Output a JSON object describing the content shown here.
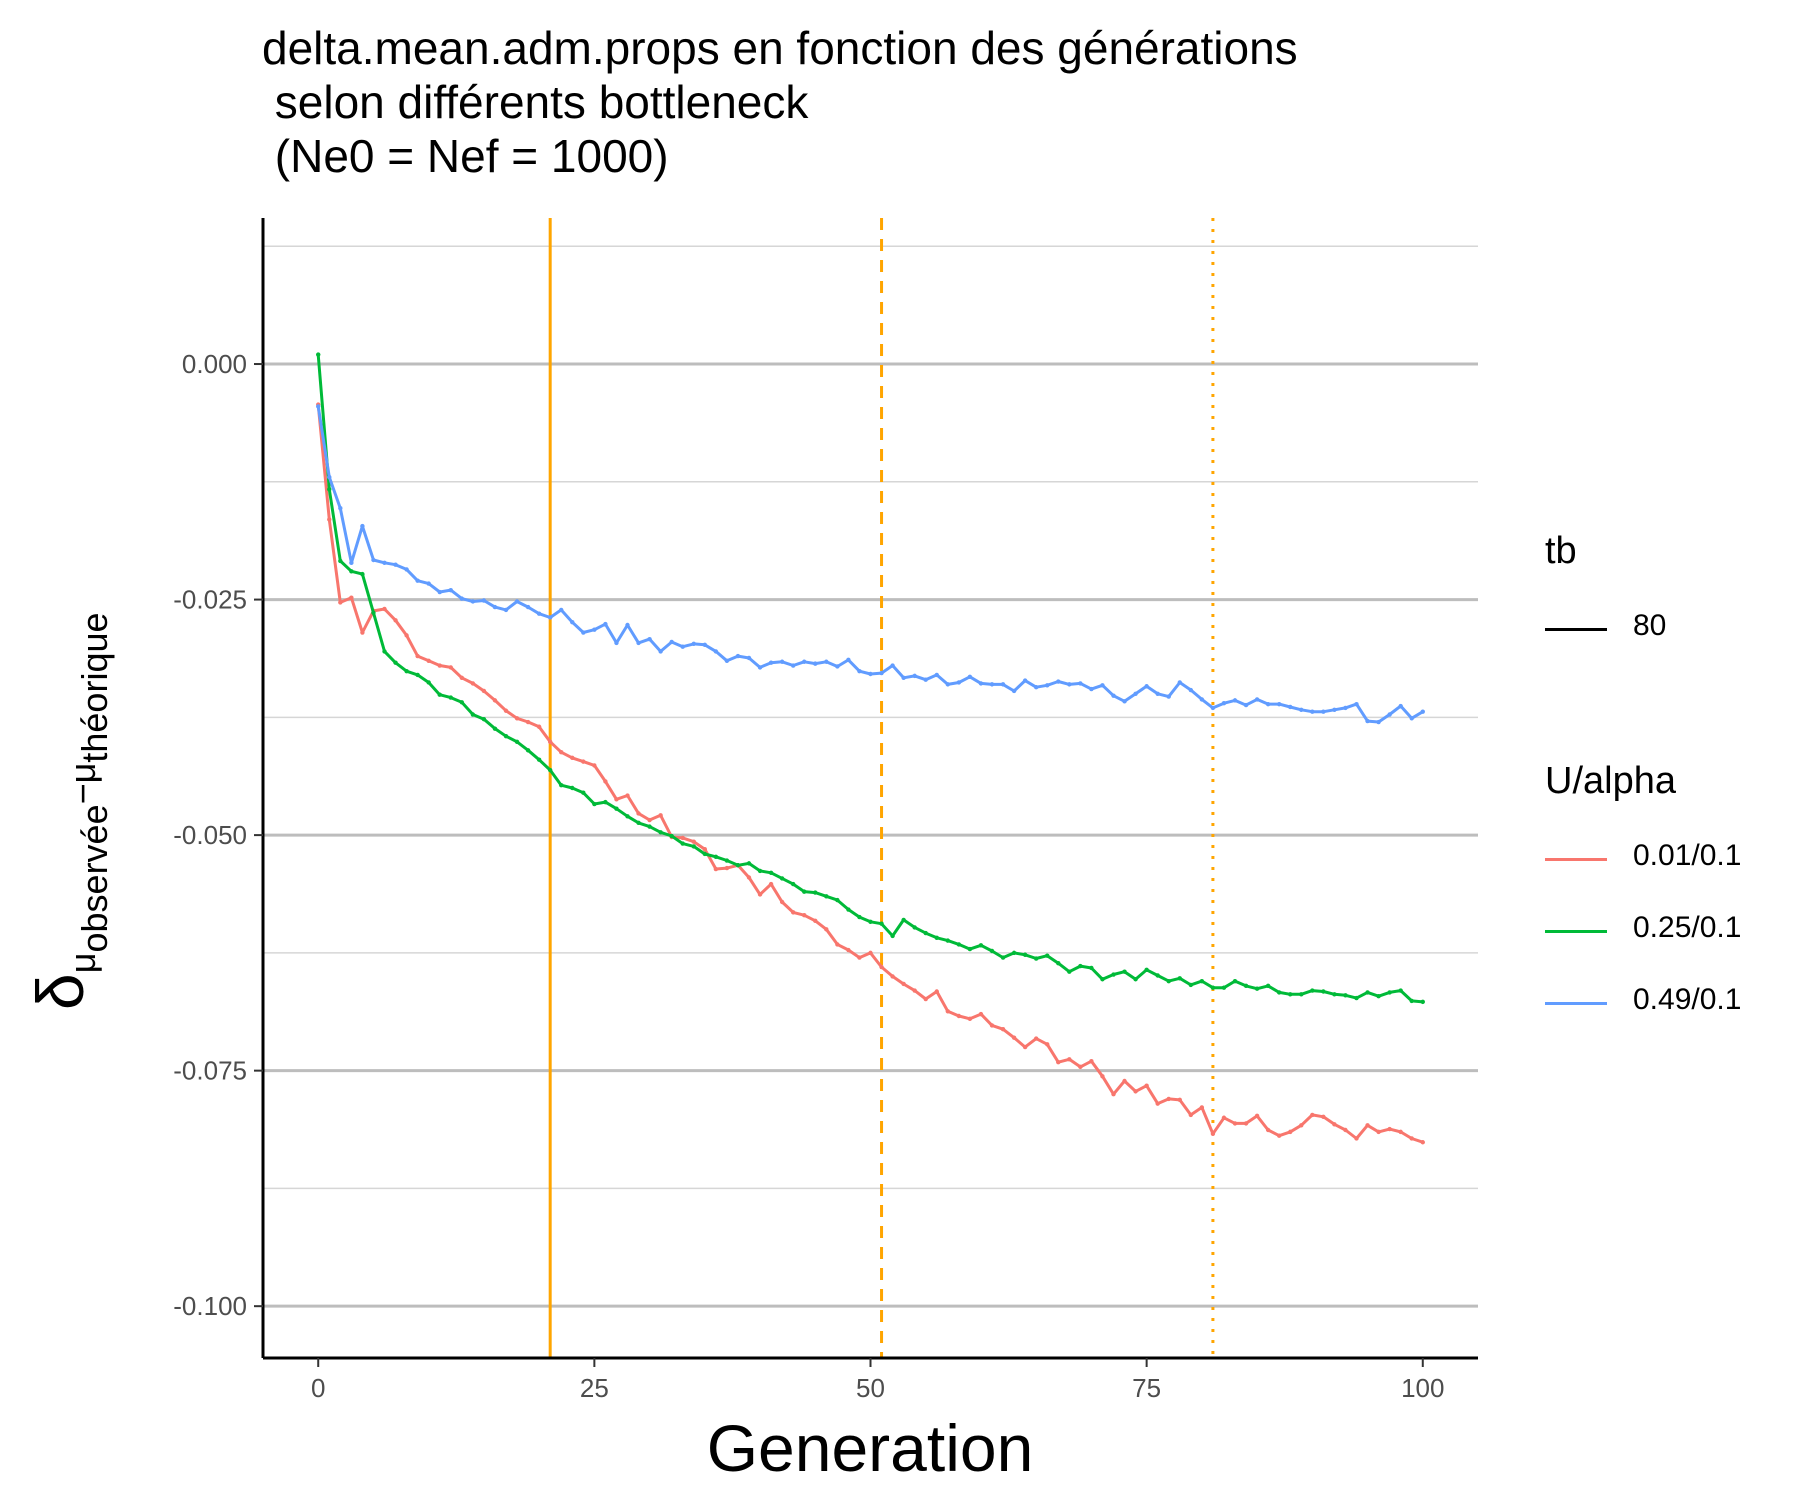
{
  "title_lines": [
    "delta.mean.adm.props en fonction des générations",
    " selon différents bottleneck",
    " (Ne0 = Nef = 1000)"
  ],
  "chart_data": {
    "type": "line",
    "xlabel": "Generation",
    "ylabel": {
      "symbol": "δ",
      "sub1": "μ",
      "sub1b": "observée",
      "sep": "−",
      "sub2": "μ",
      "sub2b": "théorique"
    },
    "xlim": [
      -5,
      105
    ],
    "ylim": [
      -0.1055,
      0.0155
    ],
    "x_ticks": [
      0,
      25,
      50,
      75,
      100
    ],
    "x_tick_labels": [
      "0",
      "25",
      "50",
      "75",
      "100"
    ],
    "y_ticks": [
      0.0,
      -0.025,
      -0.05,
      -0.075,
      -0.1
    ],
    "y_tick_labels": [
      "0.000",
      "-0.025",
      "-0.050",
      "-0.075",
      "-0.100"
    ],
    "y_minor_ticks": [
      0.0125,
      -0.0125,
      -0.0375,
      -0.0625,
      -0.0875
    ],
    "grid": true,
    "legend_position": "right",
    "vlines": [
      {
        "x": 21,
        "style": "solid",
        "color": "#FFA500"
      },
      {
        "x": 51,
        "style": "dashed",
        "color": "#FFA500"
      },
      {
        "x": 81,
        "style": "dotted",
        "color": "#FFA500"
      }
    ],
    "legend_tb": {
      "title": "tb",
      "entries": [
        "80"
      ]
    },
    "legend_u": {
      "title": "U/alpha",
      "entries": [
        "0.01/0.1",
        "0.25/0.1",
        "0.49/0.1"
      ]
    },
    "series": [
      {
        "name": "0.01/0.1",
        "color": "#F8766D",
        "x_start": 0,
        "x_step": 1,
        "y": [
          -0.0043,
          -0.0165,
          -0.0253,
          -0.0248,
          -0.0285,
          -0.0262,
          -0.026,
          -0.0272,
          -0.0288,
          -0.031,
          -0.0315,
          -0.032,
          -0.0322,
          -0.0333,
          -0.0339,
          -0.0347,
          -0.0357,
          -0.0368,
          -0.0376,
          -0.038,
          -0.0385,
          -0.0401,
          -0.0412,
          -0.0418,
          -0.0422,
          -0.0426,
          -0.0443,
          -0.0462,
          -0.0458,
          -0.0477,
          -0.0484,
          -0.0479,
          -0.0502,
          -0.0503,
          -0.0507,
          -0.0515,
          -0.0536,
          -0.0535,
          -0.0532,
          -0.0545,
          -0.0563,
          -0.0552,
          -0.0571,
          -0.0582,
          -0.0585,
          -0.0591,
          -0.06,
          -0.0616,
          -0.0622,
          -0.063,
          -0.0625,
          -0.064,
          -0.065,
          -0.0658,
          -0.0665,
          -0.0674,
          -0.0666,
          -0.0687,
          -0.0692,
          -0.0695,
          -0.069,
          -0.0702,
          -0.0706,
          -0.0715,
          -0.0725,
          -0.0716,
          -0.0722,
          -0.0741,
          -0.0738,
          -0.0746,
          -0.074,
          -0.0756,
          -0.0775,
          -0.0761,
          -0.0772,
          -0.0766,
          -0.0785,
          -0.078,
          -0.0781,
          -0.0797,
          -0.0789,
          -0.0817,
          -0.08,
          -0.0806,
          -0.0806,
          -0.0798,
          -0.0813,
          -0.0819,
          -0.0815,
          -0.0808,
          -0.0797,
          -0.0799,
          -0.0807,
          -0.0813,
          -0.0822,
          -0.0808,
          -0.0815,
          -0.0812,
          -0.0815,
          -0.0822,
          -0.0826
        ]
      },
      {
        "name": "0.25/0.1",
        "color": "#00BA38",
        "x_start": 0,
        "x_step": 1,
        "y": [
          0.001,
          -0.0133,
          -0.0209,
          -0.022,
          -0.0223,
          -0.0264,
          -0.0305,
          -0.0317,
          -0.0326,
          -0.033,
          -0.0338,
          -0.0351,
          -0.0354,
          -0.0359,
          -0.0372,
          -0.0377,
          -0.0387,
          -0.0395,
          -0.0401,
          -0.041,
          -0.042,
          -0.0431,
          -0.0447,
          -0.045,
          -0.0455,
          -0.0467,
          -0.0465,
          -0.0472,
          -0.048,
          -0.0487,
          -0.0491,
          -0.0497,
          -0.0501,
          -0.0509,
          -0.0512,
          -0.052,
          -0.0523,
          -0.0527,
          -0.0532,
          -0.053,
          -0.0538,
          -0.054,
          -0.0546,
          -0.0552,
          -0.056,
          -0.0561,
          -0.0565,
          -0.0569,
          -0.0579,
          -0.0587,
          -0.0592,
          -0.0594,
          -0.0607,
          -0.059,
          -0.0598,
          -0.0604,
          -0.0609,
          -0.0612,
          -0.0616,
          -0.0621,
          -0.0617,
          -0.0623,
          -0.063,
          -0.0625,
          -0.0627,
          -0.0631,
          -0.0628,
          -0.0636,
          -0.0645,
          -0.0639,
          -0.0641,
          -0.0653,
          -0.0648,
          -0.0645,
          -0.0653,
          -0.0643,
          -0.0649,
          -0.0655,
          -0.0652,
          -0.0659,
          -0.0655,
          -0.0662,
          -0.0662,
          -0.0655,
          -0.066,
          -0.0663,
          -0.066,
          -0.0667,
          -0.0669,
          -0.0669,
          -0.0665,
          -0.0666,
          -0.0669,
          -0.067,
          -0.0673,
          -0.0667,
          -0.0671,
          -0.0667,
          -0.0665,
          -0.0676,
          -0.0677
        ]
      },
      {
        "name": "0.49/0.1",
        "color": "#619CFF",
        "x_start": 0,
        "x_step": 1,
        "y": [
          -0.0045,
          -0.012,
          -0.0153,
          -0.0211,
          -0.0172,
          -0.0208,
          -0.0211,
          -0.0213,
          -0.0218,
          -0.023,
          -0.0233,
          -0.0242,
          -0.024,
          -0.0249,
          -0.0252,
          -0.0251,
          -0.0258,
          -0.0261,
          -0.0252,
          -0.0258,
          -0.0265,
          -0.0269,
          -0.0261,
          -0.0274,
          -0.0285,
          -0.0282,
          -0.0276,
          -0.0296,
          -0.0277,
          -0.0296,
          -0.0292,
          -0.0305,
          -0.0295,
          -0.03,
          -0.0297,
          -0.0298,
          -0.0305,
          -0.0315,
          -0.031,
          -0.0312,
          -0.0322,
          -0.0317,
          -0.0316,
          -0.032,
          -0.0316,
          -0.0318,
          -0.0316,
          -0.0321,
          -0.0314,
          -0.0326,
          -0.0329,
          -0.0328,
          -0.032,
          -0.0333,
          -0.0331,
          -0.0335,
          -0.033,
          -0.034,
          -0.0338,
          -0.0332,
          -0.0339,
          -0.034,
          -0.034,
          -0.0347,
          -0.0336,
          -0.0343,
          -0.0341,
          -0.0337,
          -0.034,
          -0.0339,
          -0.0345,
          -0.0341,
          -0.0352,
          -0.0358,
          -0.035,
          -0.0342,
          -0.035,
          -0.0353,
          -0.0338,
          -0.0346,
          -0.0356,
          -0.0365,
          -0.036,
          -0.0357,
          -0.0362,
          -0.0356,
          -0.0361,
          -0.0361,
          -0.0364,
          -0.0367,
          -0.0369,
          -0.0369,
          -0.0367,
          -0.0365,
          -0.0361,
          -0.0379,
          -0.038,
          -0.0372,
          -0.0363,
          -0.0376,
          -0.0369
        ]
      }
    ]
  }
}
